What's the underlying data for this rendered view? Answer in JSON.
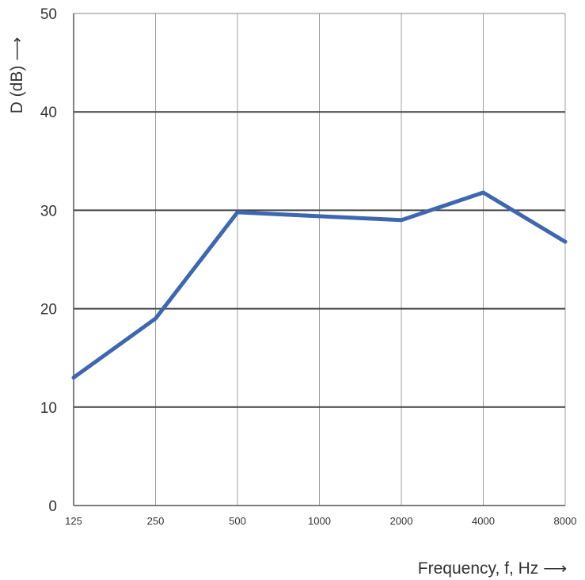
{
  "chart_data": {
    "type": "line",
    "title": "",
    "xlabel": "Frequency, f, Hz ⟶",
    "ylabel": "D (dB) ⟶",
    "x_categories": [
      "125",
      "250",
      "500",
      "1000",
      "2000",
      "4000",
      "8000"
    ],
    "y_ticks": [
      "0",
      "10",
      "20",
      "30",
      "40",
      "50"
    ],
    "ylim": [
      0,
      50
    ],
    "grid": true,
    "colors": {
      "series": "#3d67b0",
      "grid_major": "#444444",
      "grid_minor": "#888888",
      "axis": "#555555"
    },
    "series": [
      {
        "x": [
          125,
          250,
          500,
          1000,
          2000,
          4000,
          8000
        ],
        "y": [
          13,
          19,
          29.8,
          29.4,
          29,
          31.8,
          26.8
        ]
      }
    ]
  }
}
